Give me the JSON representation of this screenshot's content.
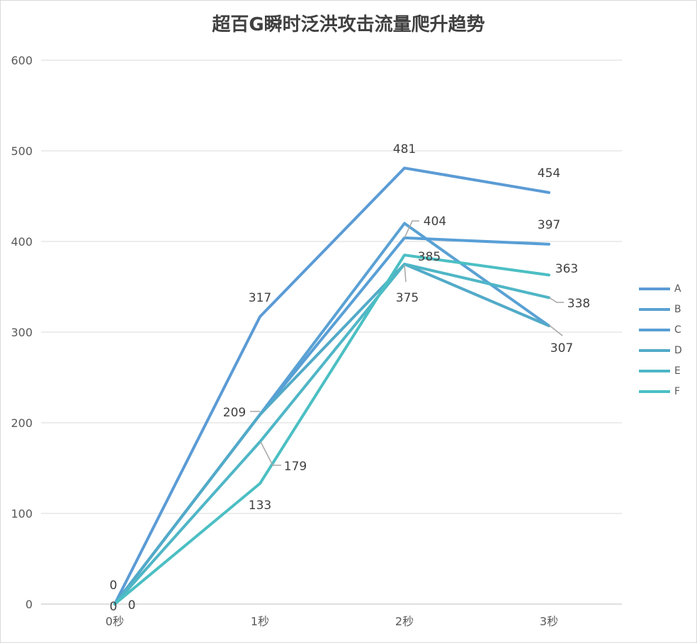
{
  "chart_data": {
    "type": "line",
    "title": "超百G瞬时泛洪攻击流量爬升趋势",
    "xlabel": "",
    "ylabel": "",
    "categories": [
      "0秒",
      "1秒",
      "2秒",
      "3秒"
    ],
    "ylim": [
      0,
      600
    ],
    "yticks": [
      "0",
      "100",
      "200",
      "300",
      "400",
      "500",
      "600"
    ],
    "grid": true,
    "legend_position": "right",
    "series": [
      {
        "name": "A",
        "values": [
          0,
          317,
          481,
          454
        ],
        "color": "#5b9bd5"
      },
      {
        "name": "B",
        "values": [
          0,
          209,
          420,
          307
        ],
        "color": "#5aa1d4"
      },
      {
        "name": "C",
        "values": [
          0,
          209,
          404,
          397
        ],
        "color": "#589fd6"
      },
      {
        "name": "D",
        "values": [
          0,
          209,
          375,
          307
        ],
        "color": "#52aac8"
      },
      {
        "name": "E",
        "values": [
          0,
          179,
          375,
          338
        ],
        "color": "#4fb6c6"
      },
      {
        "name": "F",
        "values": [
          0,
          133,
          385,
          363
        ],
        "color": "#4bbfc3"
      }
    ],
    "data_labels": [
      "0",
      "0",
      "0",
      "317",
      "209",
      "179",
      "133",
      "481",
      "404",
      "385",
      "375",
      "454",
      "397",
      "363",
      "338",
      "307"
    ]
  }
}
